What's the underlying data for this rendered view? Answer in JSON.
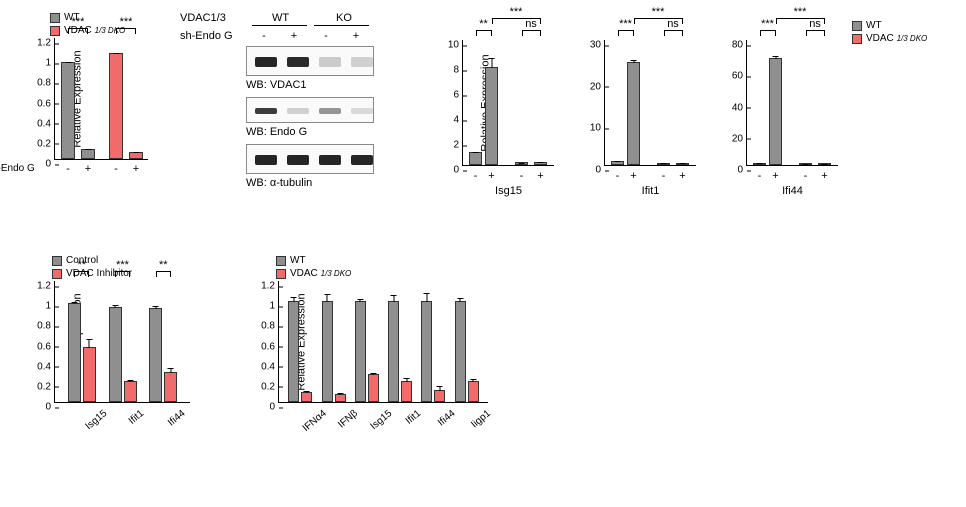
{
  "colors": {
    "wt": "#8f8f8f",
    "ko": "#f26b6b",
    "axis": "#000000",
    "bg": "#ffffff"
  },
  "legend": {
    "wt": "WT",
    "vdac_dko": "VDAC",
    "vdac_dko_sup": "1/3 DKO",
    "control": "Control",
    "vdac_inhibitor": "VDAC Inhibitor"
  },
  "ylabels": {
    "rel_expr": "Relative Expression"
  },
  "panelA": {
    "type": "bar",
    "ylim": [
      0,
      1.2
    ],
    "yticks": [
      0,
      0.2,
      0.4,
      0.6,
      0.8,
      1.0,
      1.2
    ],
    "bars": [
      {
        "v": 0.96,
        "err": 0.01,
        "color": "wt"
      },
      {
        "v": 0.1,
        "err": 0.01,
        "color": "wt"
      },
      {
        "v": 1.05,
        "err": 0.01,
        "color": "ko"
      },
      {
        "v": 0.07,
        "err": 0.01,
        "color": "ko"
      }
    ],
    "xrow_label": "sh-Endo G",
    "xpm": [
      "-",
      "+",
      "-",
      "+"
    ],
    "sig": [
      {
        "span": [
          0,
          1
        ],
        "text": "***"
      },
      {
        "span": [
          2,
          3
        ],
        "text": "***"
      }
    ]
  },
  "westernblot": {
    "header_left": "VDAC1/3",
    "header_wt": "WT",
    "header_ko": "KO",
    "row_label": "sh-Endo G",
    "row_pm": [
      "-",
      "+",
      "-",
      "+"
    ],
    "labels": [
      "WB: VDAC1",
      "WB: Endo G",
      "WB: α-tubulin"
    ],
    "bands": [
      {
        "lane_intensity": [
          1.0,
          0.95,
          0.12,
          0.1
        ],
        "heavy": true
      },
      {
        "lane_intensity": [
          0.85,
          0.1,
          0.4,
          0.05
        ],
        "heavy": false
      },
      {
        "lane_intensity": [
          1.0,
          1.0,
          1.0,
          1.0
        ],
        "heavy": true
      }
    ]
  },
  "panelC": {
    "ylabel": "Relative Expression",
    "charts": [
      {
        "name": "Isg15",
        "ylim": [
          0,
          10
        ],
        "yticks": [
          0,
          2,
          4,
          6,
          8,
          10
        ],
        "bars": [
          {
            "v": 1.0,
            "err": 0.1,
            "color": "wt"
          },
          {
            "v": 7.8,
            "err": 0.8,
            "color": "wt"
          },
          {
            "v": 0.2,
            "err": 0.05,
            "color": "ko"
          },
          {
            "v": 0.25,
            "err": 0.05,
            "color": "ko"
          }
        ],
        "sig": [
          {
            "span": [
              0,
              1
            ],
            "text": "**"
          },
          {
            "span": [
              1,
              3
            ],
            "text": "***",
            "high": true
          },
          {
            "span": [
              2,
              3
            ],
            "text": "ns"
          }
        ]
      },
      {
        "name": "Ifit1",
        "ylim": [
          0,
          30
        ],
        "yticks": [
          0,
          10,
          20,
          30
        ],
        "bars": [
          {
            "v": 1.0,
            "err": 0.3,
            "color": "wt"
          },
          {
            "v": 24.5,
            "err": 0.8,
            "color": "wt"
          },
          {
            "v": 0.4,
            "err": 0.2,
            "color": "ko"
          },
          {
            "v": 0.3,
            "err": 0.2,
            "color": "ko"
          }
        ],
        "sig": [
          {
            "span": [
              0,
              1
            ],
            "text": "***"
          },
          {
            "span": [
              1,
              3
            ],
            "text": "***",
            "high": true
          },
          {
            "span": [
              2,
              3
            ],
            "text": "ns"
          }
        ]
      },
      {
        "name": "Ifi44",
        "ylim": [
          0,
          80
        ],
        "yticks": [
          0,
          20,
          40,
          60,
          80
        ],
        "bars": [
          {
            "v": 1.0,
            "err": 0.5,
            "color": "wt"
          },
          {
            "v": 68,
            "err": 2.0,
            "color": "wt"
          },
          {
            "v": 0.7,
            "err": 0.3,
            "color": "ko"
          },
          {
            "v": 0.6,
            "err": 0.3,
            "color": "ko"
          }
        ],
        "sig": [
          {
            "span": [
              0,
              1
            ],
            "text": "***"
          },
          {
            "span": [
              1,
              3
            ],
            "text": "***",
            "high": true
          },
          {
            "span": [
              2,
              3
            ],
            "text": "ns"
          }
        ]
      }
    ],
    "xpm": [
      "-",
      "+",
      "-",
      "+"
    ]
  },
  "panelD": {
    "ylim": [
      0,
      1.2
    ],
    "yticks": [
      0,
      0.2,
      0.4,
      0.6,
      0.8,
      1.0,
      1.2
    ],
    "series_labels": [
      "Control",
      "VDAC Inhibitor"
    ],
    "categories": [
      "Isg15",
      "Ifit1",
      "Ifi44"
    ],
    "data": [
      {
        "ctrl": 0.98,
        "ctrl_err": 0.02,
        "inh": 0.55,
        "inh_err": 0.08,
        "sig": "**"
      },
      {
        "ctrl": 0.94,
        "ctrl_err": 0.03,
        "inh": 0.21,
        "inh_err": 0.02,
        "sig": "***"
      },
      {
        "ctrl": 0.93,
        "ctrl_err": 0.03,
        "inh": 0.3,
        "inh_err": 0.05,
        "sig": "**"
      }
    ]
  },
  "panelE": {
    "ylim": [
      0,
      1.2
    ],
    "yticks": [
      0,
      0.2,
      0.4,
      0.6,
      0.8,
      1.0,
      1.2
    ],
    "categories": [
      "IFNα4",
      "IFNβ",
      "Isg15",
      "Ifit1",
      "Ifi44",
      "Iigp1"
    ],
    "data": [
      {
        "wt": 1.0,
        "wt_err": 0.05,
        "ko": 0.1,
        "ko_err": 0.02
      },
      {
        "wt": 1.0,
        "wt_err": 0.08,
        "ko": 0.08,
        "ko_err": 0.02
      },
      {
        "wt": 1.0,
        "wt_err": 0.03,
        "ko": 0.28,
        "ko_err": 0.02
      },
      {
        "wt": 1.0,
        "wt_err": 0.07,
        "ko": 0.21,
        "ko_err": 0.04
      },
      {
        "wt": 1.0,
        "wt_err": 0.09,
        "ko": 0.12,
        "ko_err": 0.05
      },
      {
        "wt": 1.0,
        "wt_err": 0.04,
        "ko": 0.21,
        "ko_err": 0.03
      }
    ]
  },
  "fontsize": {
    "axis_label": 11,
    "tick": 10
  }
}
